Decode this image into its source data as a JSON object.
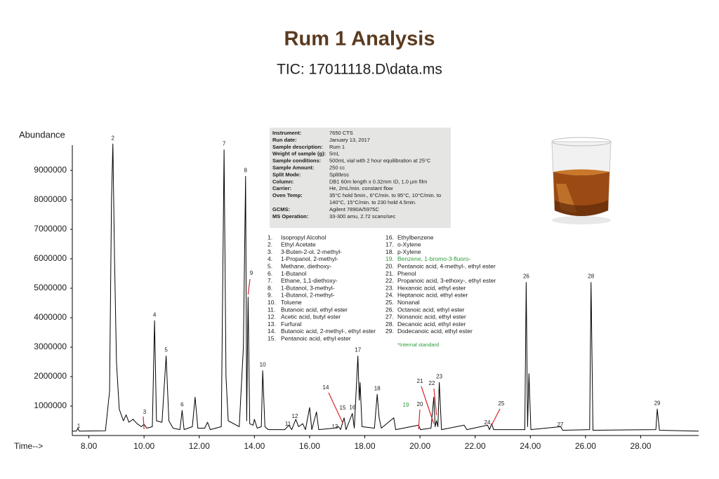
{
  "chart_data": {
    "type": "line",
    "title": "Rum 1 Analysis",
    "subtitle": "TIC: 17011118.D\\data.ms",
    "y_label": "Abundance",
    "x_label": "Time-->",
    "color": "#000000",
    "xlim": [
      7.4,
      30.1
    ],
    "ylim": [
      0,
      10000000
    ],
    "xticks": [
      {
        "value": 8,
        "label": "8.00"
      },
      {
        "value": 10,
        "label": "10.00"
      },
      {
        "value": 12,
        "label": "12.00"
      },
      {
        "value": 14,
        "label": "14.00"
      },
      {
        "value": 16,
        "label": "16.00"
      },
      {
        "value": 18,
        "label": "18.00"
      },
      {
        "value": 20,
        "label": "20.00"
      },
      {
        "value": 22,
        "label": "22.00"
      },
      {
        "value": 24,
        "label": "24.00"
      },
      {
        "value": 26,
        "label": "26.00"
      },
      {
        "value": 28,
        "label": "28.00"
      }
    ],
    "yticks": [
      1000000,
      2000000,
      3000000,
      4000000,
      5000000,
      6000000,
      7000000,
      8000000,
      9000000
    ],
    "x": [
      7.4,
      7.55,
      7.6,
      7.65,
      8.6,
      8.75,
      8.82,
      8.87,
      8.93,
      9.0,
      9.1,
      9.25,
      9.35,
      9.45,
      9.6,
      9.75,
      9.9,
      10.0,
      10.1,
      10.3,
      10.38,
      10.45,
      10.65,
      10.8,
      10.9,
      11.05,
      11.3,
      11.38,
      11.45,
      11.75,
      11.85,
      11.95,
      12.2,
      12.3,
      12.4,
      12.8,
      12.9,
      12.97,
      13.05,
      13.45,
      13.6,
      13.68,
      13.72,
      13.77,
      13.83,
      13.95,
      14.0,
      14.1,
      14.25,
      14.3,
      14.38,
      14.5,
      15.1,
      15.25,
      15.35,
      15.5,
      15.6,
      15.75,
      15.85,
      16.0,
      16.08,
      16.25,
      16.33,
      16.9,
      17.05,
      17.12,
      17.25,
      17.32,
      17.55,
      17.62,
      17.75,
      17.8,
      17.83,
      17.9,
      18.35,
      18.45,
      18.52,
      18.6,
      19.05,
      19.12,
      19.95,
      20.02,
      20.4,
      20.5,
      20.55,
      20.6,
      20.65,
      20.7,
      20.78,
      21.6,
      21.7,
      22.45,
      22.52,
      22.6,
      22.67,
      23.8,
      23.85,
      23.9,
      23.95,
      24.02,
      25.1,
      25.17,
      26.15,
      26.2,
      26.27,
      28.55,
      28.6,
      28.68,
      30.1
    ],
    "values": [
      150000,
      150000,
      250000,
      150000,
      160000,
      1500000,
      8000000,
      9900000,
      6000000,
      2500000,
      900000,
      500000,
      700000,
      450000,
      550000,
      400000,
      300000,
      380000,
      250000,
      300000,
      3900000,
      500000,
      450000,
      2700000,
      500000,
      250000,
      200000,
      850000,
      200000,
      300000,
      1300000,
      250000,
      250000,
      450000,
      200000,
      300000,
      9700000,
      2000000,
      500000,
      300000,
      3000000,
      8800000,
      500000,
      4700000,
      400000,
      350000,
      550000,
      250000,
      300000,
      2200000,
      300000,
      200000,
      200000,
      350000,
      200000,
      550000,
      300000,
      400000,
      200000,
      950000,
      200000,
      800000,
      200000,
      250000,
      300000,
      200000,
      600000,
      200000,
      750000,
      250000,
      2700000,
      1200000,
      1800000,
      300000,
      250000,
      1400000,
      600000,
      250000,
      600000,
      200000,
      350000,
      200000,
      250000,
      1300000,
      300000,
      500000,
      300000,
      1800000,
      200000,
      350000,
      200000,
      350000,
      200000,
      400000,
      200000,
      200000,
      5200000,
      300000,
      2100000,
      200000,
      300000,
      180000,
      200000,
      5200000,
      180000,
      200000,
      900000,
      180000,
      150000
    ],
    "peak_labels": [
      {
        "text": "1",
        "x": 7.6
      },
      {
        "text": "2",
        "x": 8.87
      },
      {
        "text": "3",
        "x": 10.0
      },
      {
        "text": "4",
        "x": 10.38
      },
      {
        "text": "5",
        "x": 10.8
      },
      {
        "text": "6",
        "x": 11.38
      },
      {
        "text": "7",
        "x": 12.9
      },
      {
        "text": "8",
        "x": 13.68
      },
      {
        "text": "9",
        "x": 13.77
      },
      {
        "text": "10",
        "x": 14.3
      },
      {
        "text": "11",
        "x": 15.25
      },
      {
        "text": "12",
        "x": 15.5
      },
      {
        "text": "13",
        "x": 17.05
      },
      {
        "text": "14",
        "x": 17.2
      },
      {
        "text": "15",
        "x": 17.25
      },
      {
        "text": "16",
        "x": 17.55
      },
      {
        "text": "17",
        "x": 17.75
      },
      {
        "text": "18",
        "x": 18.45
      },
      {
        "text": "19",
        "x": 19.05,
        "color": "#2e9b3e"
      },
      {
        "text": "20",
        "x": 19.95
      },
      {
        "text": "21",
        "x": 20.5
      },
      {
        "text": "22",
        "x": 20.6
      },
      {
        "text": "23",
        "x": 20.7
      },
      {
        "text": "24",
        "x": 22.45
      },
      {
        "text": "25",
        "x": 22.6
      },
      {
        "text": "26",
        "x": 23.85
      },
      {
        "text": "27",
        "x": 25.1
      },
      {
        "text": "28",
        "x": 26.2
      },
      {
        "text": "29",
        "x": 28.6
      }
    ],
    "info_box": [
      {
        "key": "Instrument:",
        "value": [
          "7650 CTS"
        ]
      },
      {
        "key": "Run date:",
        "value": [
          "January 13, 2017"
        ]
      },
      {
        "key": "Sample description:",
        "value": [
          "Rum 1"
        ]
      },
      {
        "key": "Weight of sample (g):",
        "value": [
          "5mL"
        ]
      },
      {
        "key": "Sample conditions:",
        "value": [
          "500mL vial with 2 hour equilibration at 25°C"
        ]
      },
      {
        "key": "Sample Amount:",
        "value": [
          "250 cc"
        ]
      },
      {
        "key": "Split Mode:",
        "value": [
          "Splitless"
        ]
      },
      {
        "key": "Column:",
        "value": [
          "DB1 60m length x 0.32mm ID, 1.0 µm film"
        ]
      },
      {
        "key": "Carrier:",
        "value": [
          "He, 2mL/min. constant flow"
        ]
      },
      {
        "key": "Oven Temp:",
        "value": [
          "35°C hold 5min., 6°C/min. to 95°C, 10°C/min. to",
          "140°C, 15°C/min. to 230 hold 4.5min."
        ]
      },
      {
        "key": "GCMS:",
        "value": [
          "Agilent 7890A/5975C"
        ]
      },
      {
        "key": "MS Operation:",
        "value": [
          "33-300 amu, 2.72 scans/sec"
        ]
      }
    ],
    "compounds": [
      {
        "num": "1.",
        "name": "Isopropyl Alcohol"
      },
      {
        "num": "2.",
        "name": "Ethyl Acetate"
      },
      {
        "num": "3.",
        "name": "3-Buten-2-ol, 2-methyl-"
      },
      {
        "num": "4.",
        "name": "1-Propanol, 2-methyl-"
      },
      {
        "num": "5.",
        "name": "Methane, diethoxy-"
      },
      {
        "num": "6.",
        "name": "1-Butanol"
      },
      {
        "num": "7.",
        "name": "Ethane, 1,1-diethoxy-"
      },
      {
        "num": "8.",
        "name": "1-Butanol, 3-methyl-"
      },
      {
        "num": "9.",
        "name": "1-Butanol, 2-methyl-"
      },
      {
        "num": "10.",
        "name": "Toluene"
      },
      {
        "num": "11.",
        "name": "Butanoic acid, ethyl ester"
      },
      {
        "num": "12.",
        "name": "Acetic acid, butyl ester"
      },
      {
        "num": "13.",
        "name": "Furfural"
      },
      {
        "num": "14.",
        "name": "Butanoic acid, 2-methyl-, ethyl ester"
      },
      {
        "num": "15.",
        "name": "Pentanoic acid, ethyl ester"
      },
      {
        "num": "16.",
        "name": "Ethylbenzene"
      },
      {
        "num": "17.",
        "name": "o-Xylene"
      },
      {
        "num": "18.",
        "name": "p-Xylene"
      },
      {
        "num": "19.",
        "name": "Benzene, 1-bromo-3-fluoro-",
        "color": "#2e9b3e"
      },
      {
        "num": "20.",
        "name": "Pentanoic acid, 4-methyl-, ethyl ester"
      },
      {
        "num": "21.",
        "name": "Phenol"
      },
      {
        "num": "22.",
        "name": "Propanoic acid, 3-ethoxy-, ethyl ester"
      },
      {
        "num": "23.",
        "name": "Hexanoic acid, ethyl ester"
      },
      {
        "num": "24.",
        "name": "Heptanoic acid, ethyl ester"
      },
      {
        "num": "25.",
        "name": "Nonanal"
      },
      {
        "num": "26.",
        "name": "Octanoic acid, ethyl ester"
      },
      {
        "num": "27.",
        "name": "Nonanoic acid, ethyl ester"
      },
      {
        "num": "28.",
        "name": "Decanoic acid, ethyl ester"
      },
      {
        "num": "29.",
        "name": "Dodecanoic acid, ethyl ester"
      }
    ],
    "footnote": {
      "text": "*Internal standard",
      "color": "#2e9b3e"
    }
  }
}
